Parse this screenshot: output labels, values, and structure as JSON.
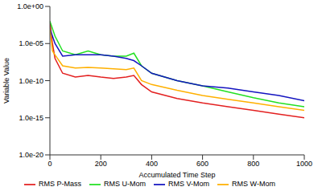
{
  "chart_data": {
    "type": "line",
    "x_label": "Accumulated Time Step",
    "y_label": "Variable Value",
    "x": [
      0,
      10,
      20,
      50,
      100,
      150,
      200,
      250,
      300,
      330,
      360,
      400,
      500,
      600,
      700,
      800,
      900,
      1000
    ],
    "series": [
      {
        "name": "RMS P-Mass",
        "color": "#e32020",
        "values": [
          0.01,
          1e-05,
          1e-07,
          1e-09,
          3e-10,
          5e-10,
          3e-10,
          2e-10,
          3e-10,
          5e-10,
          3e-11,
          3e-12,
          4e-13,
          1e-13,
          3e-14,
          1e-14,
          3e-15,
          1e-15
        ]
      },
      {
        "name": "RMS U-Mom",
        "color": "#22e022",
        "values": [
          0.01,
          0.001,
          0.0001,
          1e-06,
          3e-07,
          1e-06,
          3e-07,
          2e-07,
          2e-07,
          5e-07,
          1e-08,
          1e-09,
          1e-10,
          2e-11,
          3e-12,
          5e-13,
          1e-13,
          3e-14
        ]
      },
      {
        "name": "RMS V-Mom",
        "color": "#1414c0",
        "values": [
          0.001,
          0.0001,
          1e-05,
          2e-07,
          3e-07,
          3e-07,
          3e-07,
          2e-07,
          1e-07,
          5e-08,
          1e-08,
          1e-09,
          1e-10,
          2e-11,
          1e-11,
          3e-12,
          1e-12,
          2e-13
        ]
      },
      {
        "name": "RMS W-Mom",
        "color": "#ffb000",
        "values": [
          0.001,
          1e-06,
          3e-07,
          1e-08,
          5e-09,
          6e-09,
          5e-09,
          4e-09,
          3e-09,
          5e-09,
          1e-10,
          3e-11,
          5e-12,
          1e-12,
          3e-13,
          1e-13,
          3e-14,
          1e-14
        ]
      }
    ],
    "xlim": [
      0,
      1000
    ],
    "xticks": [
      0,
      200,
      400,
      600,
      800,
      1000
    ],
    "ylim": [
      1e-20,
      1
    ],
    "yticks": [
      {
        "value": 1e-20,
        "label": "1.0e-20"
      },
      {
        "value": 1e-15,
        "label": "1.0e-15"
      },
      {
        "value": 1e-10,
        "label": "1.0e-10"
      },
      {
        "value": 1e-05,
        "label": "1.0e-05"
      },
      {
        "value": 1,
        "label": "1.0e+00"
      }
    ],
    "log": "y",
    "grid": false,
    "legend": "bottom"
  }
}
